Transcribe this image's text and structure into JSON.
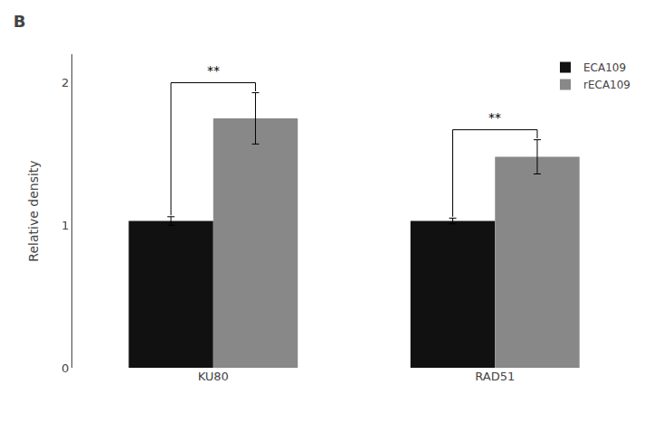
{
  "chart_data": {
    "type": "bar",
    "title": "B",
    "ylabel": "Relative density",
    "categories": [
      "KU80",
      "RAD51"
    ],
    "series": [
      {
        "name": "ECA109",
        "color": "#111111",
        "values": [
          1.03,
          1.03
        ],
        "errors": [
          0.03,
          0.02
        ]
      },
      {
        "name": "rECA109",
        "color": "#888888",
        "values": [
          1.75,
          1.48
        ],
        "errors": [
          0.18,
          0.12
        ]
      }
    ],
    "annotations": [
      {
        "category": "KU80",
        "text": "**"
      },
      {
        "category": "RAD51",
        "text": "**"
      }
    ],
    "ylim": [
      0,
      2.2
    ],
    "yticks": [
      0,
      1,
      2
    ],
    "grid": false,
    "legend": "upper right"
  }
}
